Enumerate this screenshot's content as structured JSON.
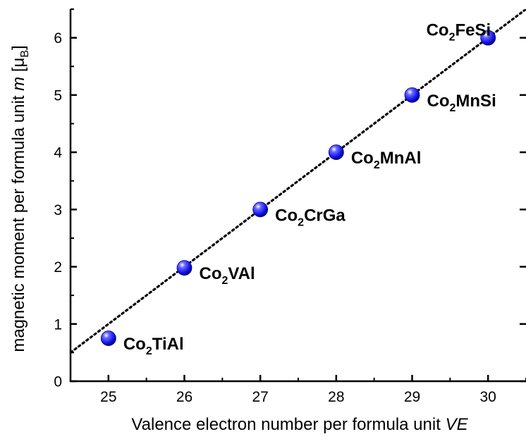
{
  "chart_data": {
    "type": "scatter",
    "title": "",
    "xlabel": "Valence electron number per formula unit",
    "xlabel_var": "VE",
    "ylabel": "magnetic moment per formula unit",
    "ylabel_var": "m",
    "yunit_open": "[μ",
    "yunit_sub": "B",
    "yunit_close": "]",
    "xlim": [
      24.5,
      30.5
    ],
    "ylim": [
      0,
      6.5
    ],
    "xticks": [
      "25",
      "26",
      "27",
      "28",
      "29",
      "30"
    ],
    "yticks": [
      "0",
      "1",
      "2",
      "3",
      "4",
      "5",
      "6"
    ],
    "grid": false,
    "marker_color": "#1a1aff",
    "fit_line": {
      "style": "dotted",
      "slope": 1,
      "intercept": -24,
      "color": "#000000"
    },
    "points": [
      {
        "x": 25,
        "y": 0.75,
        "label_parts": [
          "Co",
          "2",
          "TiAl"
        ],
        "label_pos": "right"
      },
      {
        "x": 26,
        "y": 1.98,
        "label_parts": [
          "Co",
          "2",
          "VAl"
        ],
        "label_pos": "right"
      },
      {
        "x": 27,
        "y": 3.0,
        "label_parts": [
          "Co",
          "2",
          "CrGa"
        ],
        "label_pos": "right"
      },
      {
        "x": 28,
        "y": 4.0,
        "label_parts": [
          "Co",
          "2",
          "MnAl"
        ],
        "label_pos": "right"
      },
      {
        "x": 29,
        "y": 5.0,
        "label_parts": [
          "Co",
          "2",
          "MnSi"
        ],
        "label_pos": "right"
      },
      {
        "x": 30,
        "y": 6.0,
        "label_parts": [
          "Co",
          "2",
          "FeSi"
        ],
        "label_pos": "above-left"
      }
    ]
  }
}
